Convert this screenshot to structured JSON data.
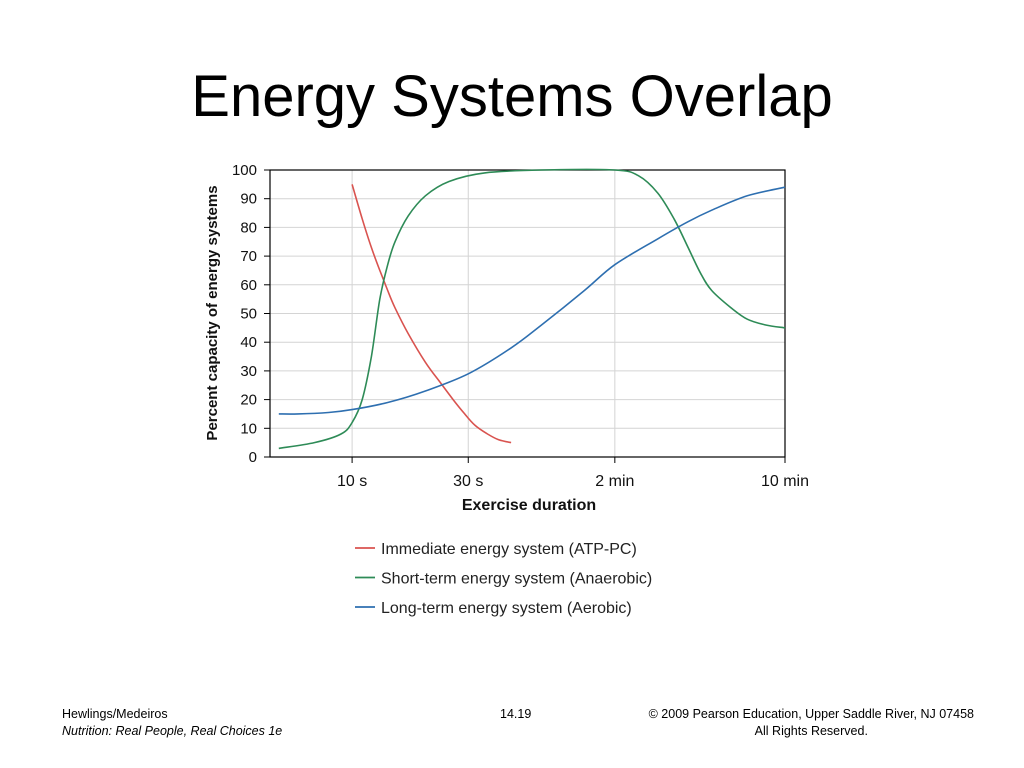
{
  "slide": {
    "title": "Energy Systems Overlap"
  },
  "footer": {
    "authors": "Hewlings/Medeiros",
    "book": "Nutrition: Real People, Real Choices 1e",
    "page": "14.19",
    "copyright_line1": "© 2009 Pearson Education, Upper Saddle River, NJ 07458",
    "copyright_line2": "All Rights Reserved."
  },
  "chart_data": {
    "type": "line",
    "title": "",
    "xlabel": "Exercise duration",
    "ylabel": "Percent capacity of energy systems",
    "ylim": [
      0,
      100
    ],
    "yticks": [
      0,
      10,
      20,
      30,
      40,
      50,
      60,
      70,
      80,
      90,
      100
    ],
    "x_scale": "log",
    "x_unit": "seconds",
    "xlim": [
      4.6,
      600
    ],
    "xticks": [
      {
        "value": 10,
        "label": "10 s"
      },
      {
        "value": 30,
        "label": "30 s"
      },
      {
        "value": 120,
        "label": "2 min"
      },
      {
        "value": 600,
        "label": "10 min"
      }
    ],
    "grid": true,
    "legend_position": "bottom",
    "series": [
      {
        "name": "Immediate energy system (ATP-PC)",
        "color": "#d9534f",
        "x": [
          10,
          11,
          12,
          13,
          14,
          15,
          17,
          20,
          23,
          26,
          29,
          32,
          36,
          40,
          45
        ],
        "y": [
          95,
          83,
          73,
          65,
          58,
          52,
          43,
          33,
          26,
          20,
          15,
          11,
          8,
          6,
          5
        ]
      },
      {
        "name": "Short-term energy system (Anaerobic)",
        "color": "#2e8b57",
        "x": [
          5,
          7,
          9,
          10,
          11,
          12,
          13,
          14,
          15,
          17,
          20,
          25,
          35,
          60,
          120,
          150,
          180,
          210,
          240,
          270,
          300,
          360,
          420,
          500,
          600
        ],
        "y": [
          3,
          5,
          8,
          12,
          20,
          35,
          55,
          67,
          75,
          84,
          91,
          96,
          99,
          100,
          100,
          98,
          92,
          83,
          73,
          64,
          58,
          52,
          48,
          46,
          45
        ]
      },
      {
        "name": "Long-term energy system (Aerobic)",
        "color": "#2e6fb0",
        "x": [
          5,
          6,
          8,
          10,
          14,
          20,
          30,
          45,
          60,
          90,
          120,
          180,
          240,
          300,
          420,
          600
        ],
        "y": [
          15,
          15,
          15.5,
          16.5,
          19,
          23,
          29,
          38,
          46,
          58,
          67,
          76,
          82,
          86,
          91,
          94
        ]
      }
    ]
  }
}
